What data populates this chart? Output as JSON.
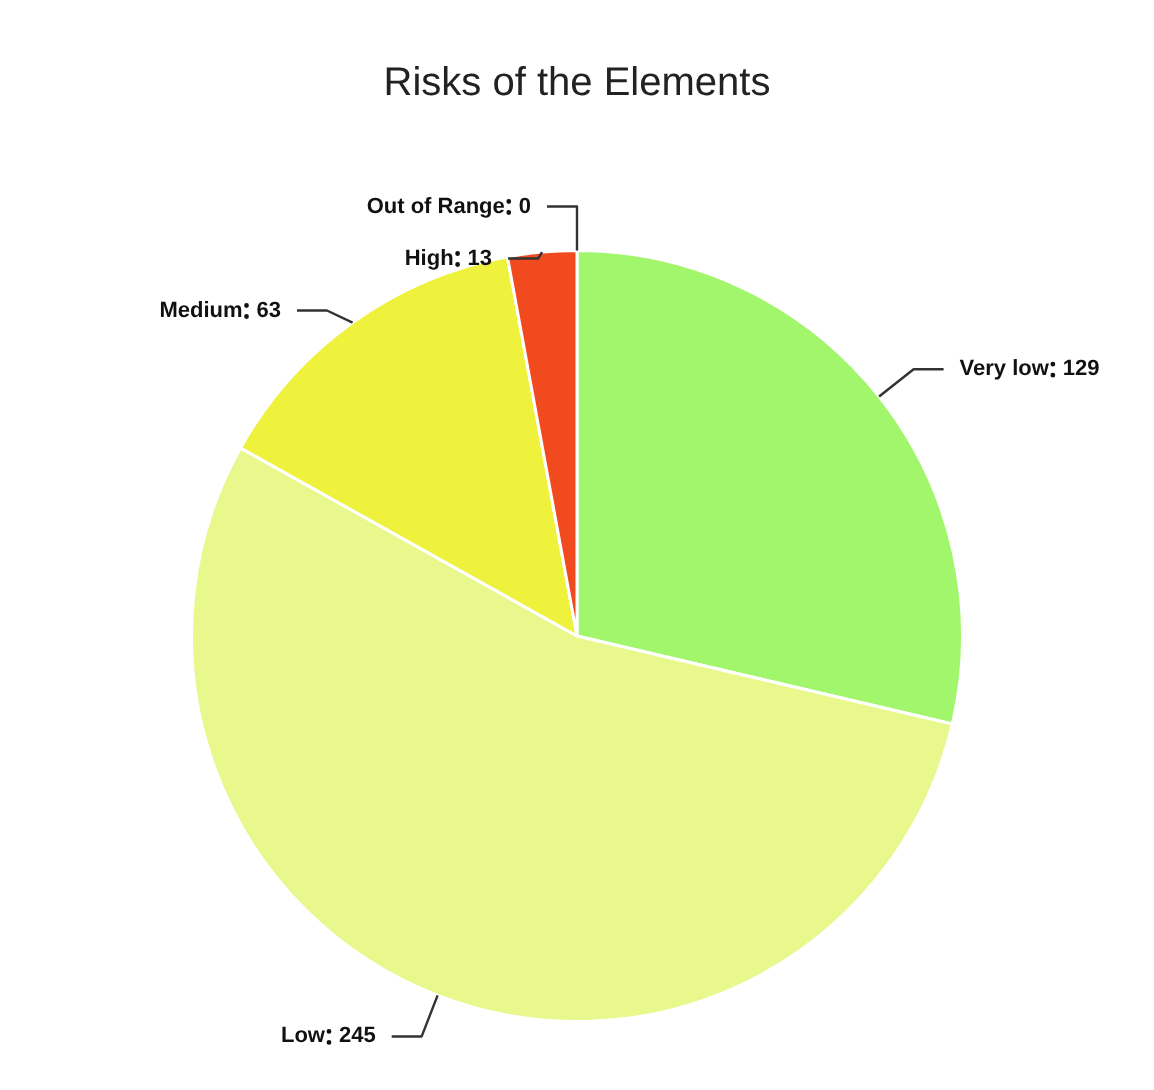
{
  "chart_data": {
    "type": "pie",
    "title": "Risks of the Elements",
    "categories": [
      "Very low",
      "Low",
      "Medium",
      "High",
      "Out of Range"
    ],
    "values": [
      129,
      245,
      63,
      13,
      0
    ],
    "colors": [
      "#a2f66c",
      "#e8f88c",
      "#eef23c",
      "#f04a1e",
      "#c81414"
    ],
    "value_labels": [
      "129",
      "245",
      "63",
      "13",
      "0"
    ]
  }
}
